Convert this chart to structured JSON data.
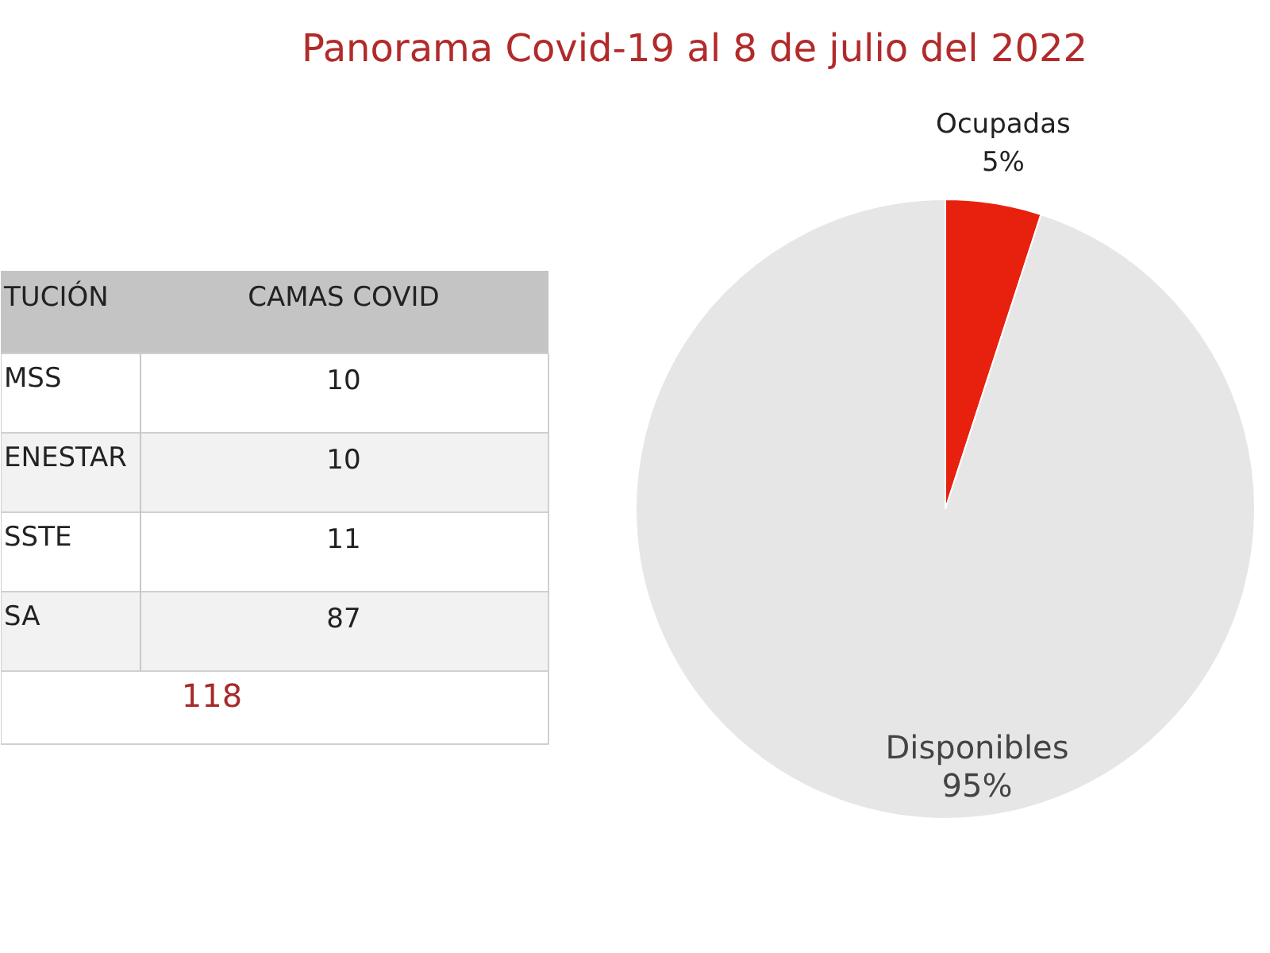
{
  "chart_data": [
    {
      "type": "other",
      "categories": [
        "MSS",
        "ENESTAR",
        "SSTE",
        "SA"
      ],
      "values": [
        10,
        10,
        11,
        87
      ],
      "data_labels": true,
      "annotations": [
        "TUCIÓN",
        "CAMAS COVID",
        "118"
      ]
    },
    {
      "type": "pie",
      "title": "Panorama Covid-19 al 8 de julio del 2022",
      "categories": [
        "Ocupadas",
        "Disponibles"
      ],
      "values": [
        5,
        95
      ],
      "colors": [
        "#e8210f",
        "#e6e6e6"
      ],
      "value_labels": [
        "5%",
        "95%"
      ]
    }
  ]
}
